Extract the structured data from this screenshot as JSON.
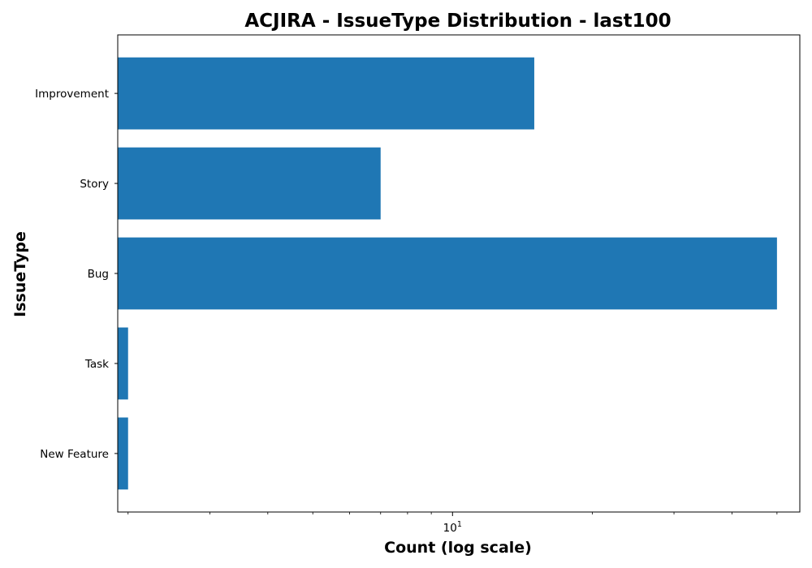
{
  "chart_data": {
    "type": "bar",
    "orientation": "horizontal",
    "title": "ACJIRA - IssueType Distribution - last100",
    "xlabel": "Count (log scale)",
    "ylabel": "IssueType",
    "xscale": "log",
    "xlim": [
      1.9,
      56
    ],
    "x_ticks": [
      {
        "value": 10,
        "base": "10",
        "exponent": "1"
      }
    ],
    "x_minor_ticks": [
      2,
      3,
      4,
      5,
      6,
      7,
      8,
      9,
      20,
      30,
      40,
      50
    ],
    "categories": [
      "New Feature",
      "Task",
      "Bug",
      "Story",
      "Improvement"
    ],
    "values": [
      2,
      2,
      50,
      7,
      15
    ],
    "bar_color": "#1f77b4",
    "grid": false,
    "legend": "none"
  }
}
